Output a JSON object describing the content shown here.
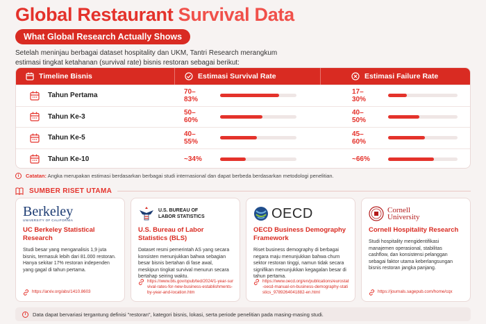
{
  "title_part1": "Global Restaurant ",
  "title_part2": "Survival Data",
  "subtitle": "What Global Research Actually Shows",
  "intro": "Setelah meninjau berbagai dataset hospitality dan UKM, Tantri Research merangkum estimasi tingkat ketahanan (survival rate) bisnis restoran sebagai berikut:",
  "table": {
    "headers": [
      "Timeline Bisnis",
      "Estimasi Survival Rate",
      "Estimasi Failure Rate"
    ],
    "rows": [
      {
        "label": "Tahun Pertama",
        "survival": "70–83%",
        "survival_level": 0.77,
        "failure": "17–30%",
        "failure_level": 0.27
      },
      {
        "label": "Tahun Ke-3",
        "survival": "50–60%",
        "survival_level": 0.55,
        "failure": "40–50%",
        "failure_level": 0.45
      },
      {
        "label": "Tahun Ke-5",
        "survival": "40–55%",
        "survival_level": 0.48,
        "failure": "45–60%",
        "failure_level": 0.53
      },
      {
        "label": "Tahun Ke-10",
        "survival": "~34%",
        "survival_level": 0.34,
        "failure": "~66%",
        "failure_level": 0.66
      }
    ]
  },
  "note_label": "Catatan:",
  "note_text": " Angka merupakan estimasi berdasarkan berbagai studi internasional dan dapat berbeda berdasarkan metodologi penelitian.",
  "section_title": "SUMBER RISET UTAMA",
  "sources": [
    {
      "logo_text": "Berkeley",
      "logo_sub": "UNIVERSITY OF CALIFORNIA",
      "title": "UC Berkeley Statistical Research",
      "desc": "Studi besar yang menganalisis 1,9 juta bisnis, termasuk lebih dari 81.000 restoran. Hanya sekitar 17% restoran independen yang gagal di tahun pertama.",
      "link": "https://arxiv.org/abs/1410.8603"
    },
    {
      "logo_text": "U.S. BUREAU OF LABOR STATISTICS",
      "title": "U.S. Bureau of Labor Statistics (BLS)",
      "desc": "Dataset resmi pemerintah AS yang secara konsisten menunjukkan bahwa sebagian besar bisnis bertahan di fase awal, meskipun tingkat survival menurun secara bertahap seiring waktu.",
      "link": "https://www.bls.gov/opub/ted/2024/1-year-survival-rates-for-new-business-establishments-by-year-and-location.htm"
    },
    {
      "logo_text": "OECD",
      "title": "OECD Business Demography Framework",
      "desc": "Riset business demography di berbagai negara maju menunjukkan bahwa churn sektor restoran tinggi, namun tidak secara signifikan menunjukkan kegagalan besar di tahun pertama.",
      "link": "https://www.oecd.org/en/publications/eurostat-oecd-manual-on-business-demography-statistics_9789264041882-en.html"
    },
    {
      "logo_text": "Cornell",
      "logo_sub": "University",
      "title": "Cornell Hospitality Research",
      "desc": "Studi hospitality mengidentifikasi manajemen operasional, stabilitas cashflow, dan konsistensi pelanggan sebagai faktor utama keberlangsungan bisnis restoran jangka panjang.",
      "link": "https://journals.sagepub.com/home/cqx"
    }
  ],
  "footer": "Data dapat bervariasi tergantung definisi \"restoran\", kategori bisnis, lokasi, serta periode penelitian pada masing-masing studi.",
  "colors": {
    "accent": "#e4322b",
    "accent_dark": "#d92b22",
    "background": "#f7f3f2"
  }
}
